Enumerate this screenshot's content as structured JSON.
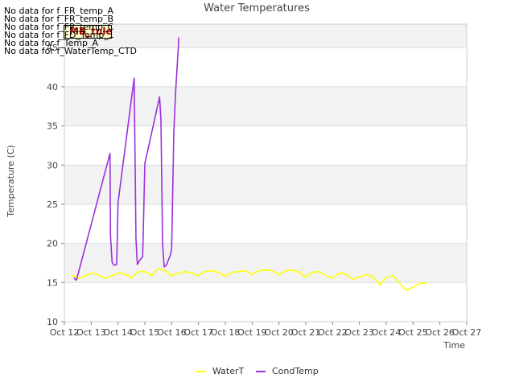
{
  "chart_data": {
    "type": "line",
    "title": "Water Temperatures",
    "xlabel": "Time",
    "ylabel": "Temperature (C)",
    "xlim": [
      0,
      15
    ],
    "ylim": [
      10,
      48
    ],
    "x_ticks": [
      0,
      1,
      2,
      3,
      4,
      5,
      6,
      7,
      8,
      9,
      10,
      11,
      12,
      13,
      14,
      15
    ],
    "x_tick_labels": [
      "Oct 12",
      "Oct 13",
      "Oct 14",
      "Oct 15",
      "Oct 16",
      "Oct 17",
      "Oct 18",
      "Oct 19",
      "Oct 20",
      "Oct 21",
      "Oct 22",
      "Oct 23",
      "Oct 24",
      "Oct 25",
      "Oct 26",
      "Oct 27"
    ],
    "y_ticks": [
      10,
      15,
      20,
      25,
      30,
      35,
      40,
      45
    ],
    "grid": true,
    "legend_position": "bottom-center",
    "no_data_messages": [
      "No data for f_FR_temp_A",
      "No data for f_FR_temp_B",
      "No data for f_FR_temp_C",
      "No data for f_FD_Temp_1",
      "No data for f_Temp_A",
      "No data for f_WaterTemp_CTD"
    ],
    "badge_label": "MB_tule",
    "series": [
      {
        "name": "WaterT",
        "color": "#ffff00",
        "x": [
          0.25,
          0.5,
          0.75,
          1.0,
          1.25,
          1.5,
          1.75,
          2.0,
          2.25,
          2.5,
          2.75,
          3.0,
          3.25,
          3.5,
          3.75,
          4.0,
          4.25,
          4.5,
          4.75,
          5.0,
          5.25,
          5.5,
          5.75,
          6.0,
          6.25,
          6.5,
          6.75,
          7.0,
          7.25,
          7.5,
          7.75,
          8.0,
          8.25,
          8.5,
          8.75,
          9.0,
          9.25,
          9.5,
          9.75,
          10.0,
          10.25,
          10.5,
          10.75,
          11.0,
          11.25,
          11.5,
          11.75,
          12.0,
          12.25,
          12.5,
          12.75,
          13.0,
          13.25,
          13.5,
          13.75,
          14.0
        ],
        "y": [
          16.0,
          15.5,
          15.8,
          16.2,
          16.0,
          15.5,
          15.8,
          16.2,
          16.1,
          15.6,
          16.4,
          16.4,
          15.9,
          16.8,
          16.5,
          15.9,
          16.2,
          16.4,
          16.2,
          15.9,
          16.4,
          16.5,
          16.3,
          15.8,
          16.3,
          16.4,
          16.5,
          16.0,
          16.5,
          16.6,
          16.5,
          16.0,
          16.5,
          16.6,
          16.3,
          15.7,
          16.3,
          16.4,
          15.9,
          15.6,
          16.2,
          16.1,
          15.4,
          15.7,
          16.0,
          15.8,
          14.7,
          15.6,
          15.9,
          14.9,
          14.0,
          14.4,
          14.9,
          14.9,
          null,
          null
        ]
      },
      {
        "name": "CondTemp",
        "color": "#9b30e0",
        "x": [
          0.35,
          0.45,
          1.7,
          1.72,
          1.78,
          1.85,
          1.95,
          2.0,
          2.6,
          2.67,
          2.72,
          2.8,
          2.92,
          3.0,
          3.55,
          3.6,
          3.66,
          3.72,
          3.8,
          3.95,
          4.0,
          4.08,
          4.15,
          4.25,
          4.26
        ],
        "y": [
          15.6,
          15.3,
          31.5,
          21.0,
          17.6,
          17.2,
          17.3,
          25.2,
          41.1,
          20.5,
          17.3,
          17.8,
          18.3,
          30.2,
          38.7,
          35.8,
          20.0,
          17.0,
          17.2,
          18.5,
          19.3,
          34.2,
          39.5,
          45.2,
          46.3
        ]
      }
    ]
  }
}
